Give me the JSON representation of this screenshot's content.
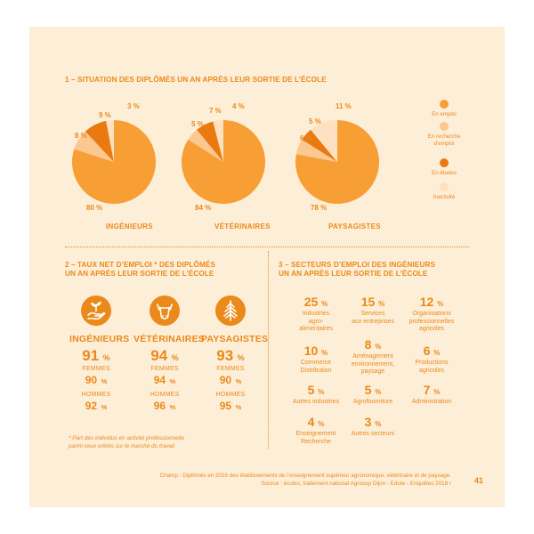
{
  "colors": {
    "emploi": "#f79f35",
    "recherche": "#fbc892",
    "etudes": "#ea7a10",
    "inactivite": "#fde1c0",
    "accent": "#ea8a1a",
    "background": "#fdeed8"
  },
  "section1": {
    "title": "1 – SITUATION DES DIPLÔMÉS UN AN APRÈS LEUR SORTIE DE L’ÉCOLE"
  },
  "chart_data": {
    "type": "pie",
    "title": "1 – SITUATION DES DIPLÔMÉS UN AN APRÈS LEUR SORTIE DE L’ÉCOLE",
    "legend_placement": "right",
    "categories": [
      "En emploi",
      "En recherche d’emploi",
      "En études",
      "Inactivité"
    ],
    "pies": [
      {
        "name": "INGÉNIEURS",
        "values": [
          80,
          8,
          9,
          3
        ],
        "labels": [
          "80 %",
          "8 %",
          "9 %",
          "3 %"
        ]
      },
      {
        "name": "VÉTÉRINAIRES",
        "values": [
          84,
          5,
          7,
          4
        ],
        "labels": [
          "84 %",
          "5 %",
          "7 %",
          "4 %"
        ]
      },
      {
        "name": "PAYSAGISTES",
        "values": [
          78,
          6,
          5,
          11
        ],
        "labels": [
          "78 %",
          "6 %",
          "5 %",
          "11 %"
        ]
      }
    ]
  },
  "legend": [
    {
      "line1": "En emploi",
      "line2": ""
    },
    {
      "line1": "En recherche",
      "line2": "d’emploi"
    },
    {
      "line1": "En études",
      "line2": ""
    },
    {
      "line1": "Inactivité",
      "line2": ""
    }
  ],
  "section2": {
    "title_line1": "2 – TAUX NET D’EMPLOI * DES DIPLÔMÉS",
    "title_line2": "UN AN APRÈS LEUR SORTIE DE L’ÉCOLE",
    "columns": [
      {
        "icon": "hand-plant-icon",
        "name": "INGÉNIEURS",
        "total": "91",
        "femmes_label": "FEMMES",
        "femmes": "90",
        "hommes_label": "HOMMES",
        "hommes": "92",
        "unit": "%"
      },
      {
        "icon": "cow-head-icon",
        "name": "VÉTÉRINAIRES",
        "total": "94",
        "femmes_label": "FEMMES",
        "femmes": "94",
        "hommes_label": "HOMMES",
        "hommes": "96",
        "unit": "%"
      },
      {
        "icon": "tree-icon",
        "name": "PAYSAGISTES",
        "total": "93",
        "femmes_label": "FEMMES",
        "femmes": "90",
        "hommes_label": "HOMMES",
        "hommes": "95",
        "unit": "%"
      }
    ],
    "note_line1": "* Part des individus en activité professionnelle",
    "note_line2": "parmi ceux entrés sur le marché du travail"
  },
  "section3": {
    "title_line1": "3 – SECTEURS D’EMPLOI DES INGÉNIEURS",
    "title_line2": "UN AN APRÈS LEUR SORTIE DE L’ÉCOLE",
    "unit": "%",
    "sectors": [
      {
        "value": "25",
        "l1": "Industries",
        "l2": "agro-",
        "l3": "alimentaires"
      },
      {
        "value": "15",
        "l1": "Services",
        "l2": "aux entreprises",
        "l3": ""
      },
      {
        "value": "12",
        "l1": "Organisations",
        "l2": "professionnelles",
        "l3": "agricoles"
      },
      {
        "value": "10",
        "l1": "Commerce",
        "l2": "Distribution",
        "l3": ""
      },
      {
        "value": "8",
        "l1": "Aménagement",
        "l2": "environnement,",
        "l3": "paysage"
      },
      {
        "value": "6",
        "l1": "Productions",
        "l2": "agricoles",
        "l3": ""
      },
      {
        "value": "5",
        "l1": "Autres industries",
        "l2": "",
        "l3": ""
      },
      {
        "value": "5",
        "l1": "Agrofourniture",
        "l2": "",
        "l3": ""
      },
      {
        "value": "7",
        "l1": "Administration",
        "l2": "",
        "l3": ""
      },
      {
        "value": "4",
        "l1": "Enseignement",
        "l2": "Recherche",
        "l3": ""
      },
      {
        "value": "3",
        "l1": "Autres secteurs",
        "l2": "",
        "l3": ""
      }
    ]
  },
  "footer": {
    "line1": "Champ : Diplômés en 2016 des établissements de l’enseignement supérieur agronomique, vétérinaire et de paysage.",
    "line2": "Source : écoles, traitement national Agrosup Dijon - Edute - Enquêtes 2018 r",
    "page_number": "41"
  }
}
